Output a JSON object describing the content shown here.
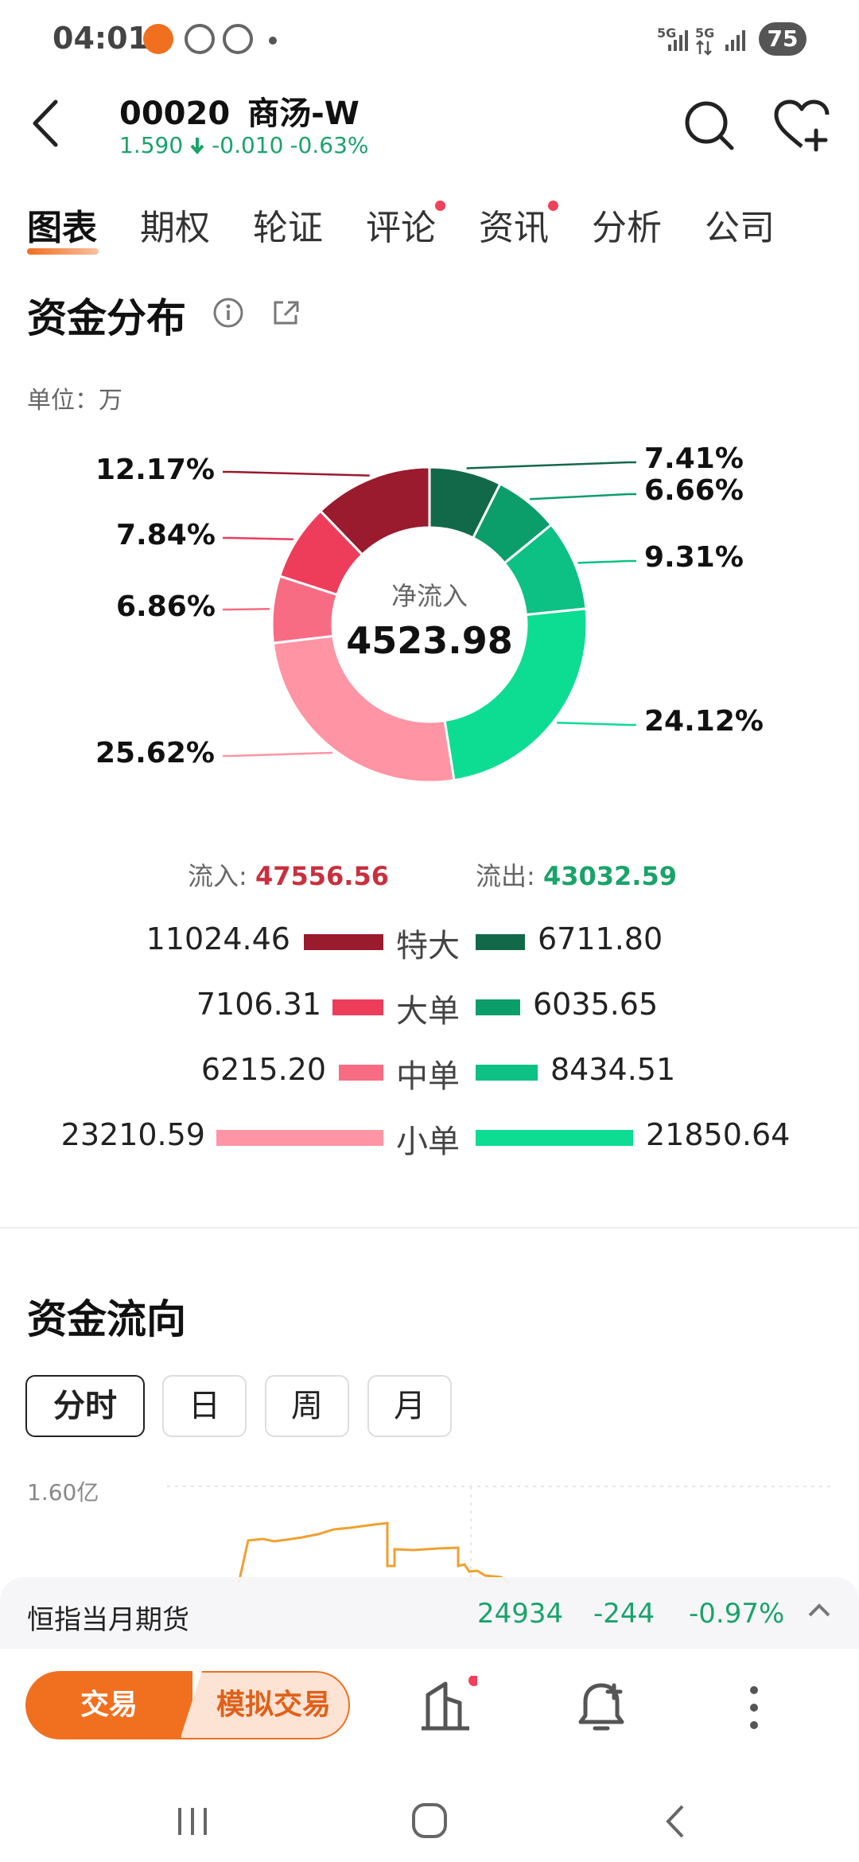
{
  "status_bar": {
    "time": "04:01",
    "net1": "5G",
    "net2": "5G",
    "battery": "75"
  },
  "header": {
    "code": "00020",
    "name": "商汤-W",
    "price": "1.590",
    "change": "-0.010",
    "change_pct": "-0.63%"
  },
  "tabs": [
    {
      "label": "图表",
      "active": true,
      "dot": false
    },
    {
      "label": "期权",
      "active": false,
      "dot": false
    },
    {
      "label": "轮证",
      "active": false,
      "dot": false
    },
    {
      "label": "评论",
      "active": false,
      "dot": true
    },
    {
      "label": "资讯",
      "active": false,
      "dot": true
    },
    {
      "label": "分析",
      "active": false,
      "dot": false
    },
    {
      "label": "公司",
      "active": false,
      "dot": false
    }
  ],
  "fund_dist": {
    "title": "资金分布",
    "unit_label": "单位：万",
    "center_label": "净流入",
    "center_value": "4523.98",
    "inflow_label": "流入:",
    "inflow_value": "47556.56",
    "outflow_label": "流出:",
    "outflow_value": "43032.59",
    "rows": [
      {
        "category": "特大",
        "inflow": "11024.46",
        "outflow": "6711.80"
      },
      {
        "category": "大单",
        "inflow": "7106.31",
        "outflow": "6035.65"
      },
      {
        "category": "中单",
        "inflow": "6215.20",
        "outflow": "8434.51"
      },
      {
        "category": "小单",
        "inflow": "23210.59",
        "outflow": "21850.64"
      }
    ]
  },
  "chart_data": {
    "type": "pie",
    "style": "donut",
    "categories": [
      "流出 特大",
      "流出 大单",
      "流出 中单",
      "流出 小单",
      "流入 小单",
      "流入 中单",
      "流入 大单",
      "流入 特大"
    ],
    "values": [
      7.41,
      6.66,
      9.31,
      24.12,
      25.62,
      6.86,
      7.84,
      12.17
    ],
    "labels": [
      "7.41%",
      "6.66%",
      "9.31%",
      "24.12%",
      "25.62%",
      "6.86%",
      "7.84%",
      "12.17%"
    ],
    "colors": [
      "#12694a",
      "#0b9e6a",
      "#0cc183",
      "#0ddc93",
      "#ff94a4",
      "#f76c83",
      "#ee3d5b",
      "#9a1a2e"
    ]
  },
  "fund_flow": {
    "title": "资金流向",
    "periods": [
      "分时",
      "日",
      "周",
      "月"
    ],
    "active_period": "分时",
    "y_top_label": "1.60亿"
  },
  "ticker": {
    "name": "恒指当月期货",
    "value": "24934",
    "change": "-244",
    "change_pct": "-0.97%"
  },
  "bottom": {
    "trade_label": "交易",
    "sim_label": "模拟交易"
  },
  "colors": {
    "up_red": "#c8303e",
    "down_green": "#1aa36b",
    "accent_orange": "#f07020",
    "chart_line": "#f0a030"
  }
}
